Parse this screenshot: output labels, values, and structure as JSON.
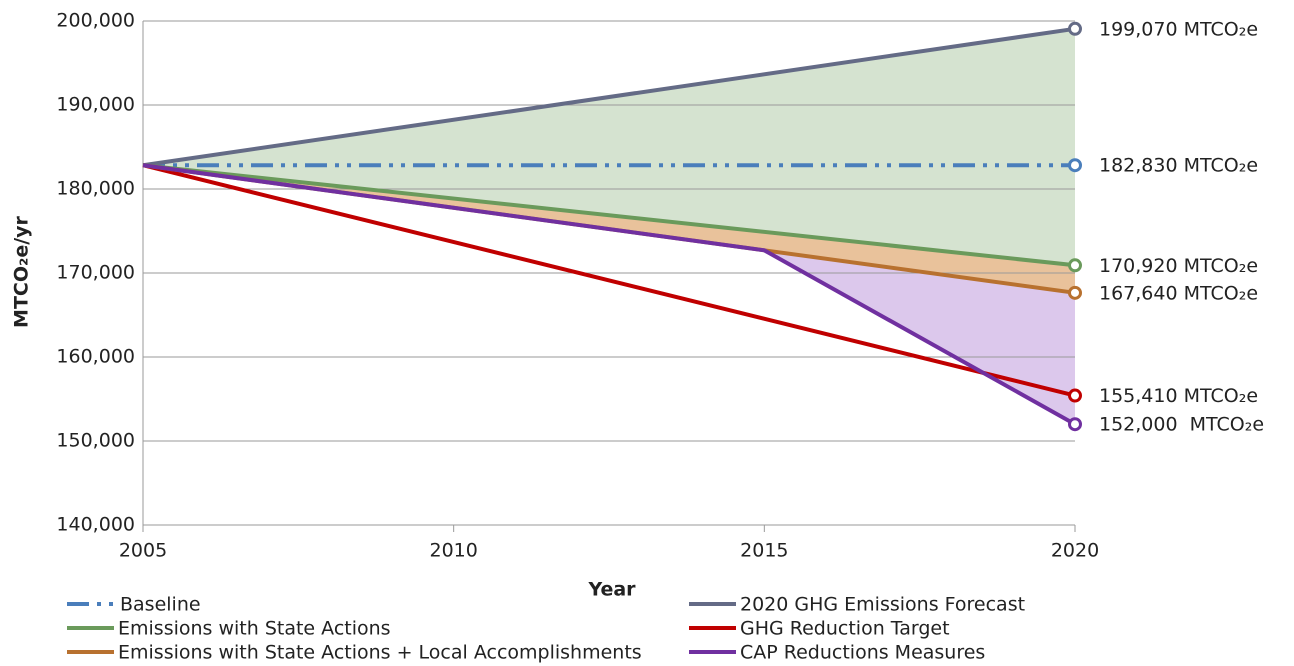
{
  "chart_data": {
    "type": "line",
    "x_label": "Year",
    "y_label": "MTCO₂e/yr",
    "xlim": [
      2005,
      2020
    ],
    "xticks": [
      2005,
      2010,
      2015,
      2020
    ],
    "ylim": [
      140000,
      200000
    ],
    "yticks": [
      {
        "value": 140000,
        "label": "140,000"
      },
      {
        "value": 150000,
        "label": "150,000"
      },
      {
        "value": 160000,
        "label": "160,000"
      },
      {
        "value": 170000,
        "label": "170,000"
      },
      {
        "value": 180000,
        "label": "180,000"
      },
      {
        "value": 190000,
        "label": "190,000"
      },
      {
        "value": 200000,
        "label": "200,000"
      }
    ],
    "grid": true,
    "legend": "bottom",
    "series": [
      {
        "name": "Baseline",
        "color": "#4a7ebb",
        "dash": "dash-dot-dot",
        "x": [
          2005,
          2020
        ],
        "values": [
          182830,
          182830
        ],
        "value_labels": [
          null,
          "182,830 MTCO₂e"
        ]
      },
      {
        "name": "2020 GHG Emissions Forecast",
        "color": "#646b86",
        "x": [
          2005,
          2020
        ],
        "values": [
          182830,
          199070
        ],
        "value_labels": [
          null,
          "199,070 MTCO₂e"
        ]
      },
      {
        "name": "Emissions with State Actions",
        "color": "#6a9a5b",
        "fill": "#d5e3d0",
        "x": [
          2005,
          2020
        ],
        "values": [
          182830,
          170920
        ],
        "value_labels": [
          null,
          "170,920 MTCO₂e"
        ]
      },
      {
        "name": "GHG Reduction Target",
        "color": "#c00000",
        "x": [
          2005,
          2020
        ],
        "values": [
          182830,
          155410
        ],
        "value_labels": [
          null,
          "155,410 MTCO₂e"
        ]
      },
      {
        "name": "Emissions with State Actions + Local Accomplishments",
        "color": "#b8712f",
        "fill": "#e9c29b",
        "x": [
          2005,
          2015,
          2020
        ],
        "values": [
          182830,
          172700,
          167640
        ],
        "value_labels": [
          null,
          null,
          "167,640 MTCO₂e"
        ]
      },
      {
        "name": "CAP Reductions Measures",
        "color": "#7030a0",
        "fill": "#dcc8ec",
        "x": [
          2005,
          2015,
          2020
        ],
        "values": [
          182830,
          172700,
          152000
        ],
        "value_labels": [
          null,
          null,
          "152,000  MTCO₂e"
        ]
      }
    ]
  }
}
